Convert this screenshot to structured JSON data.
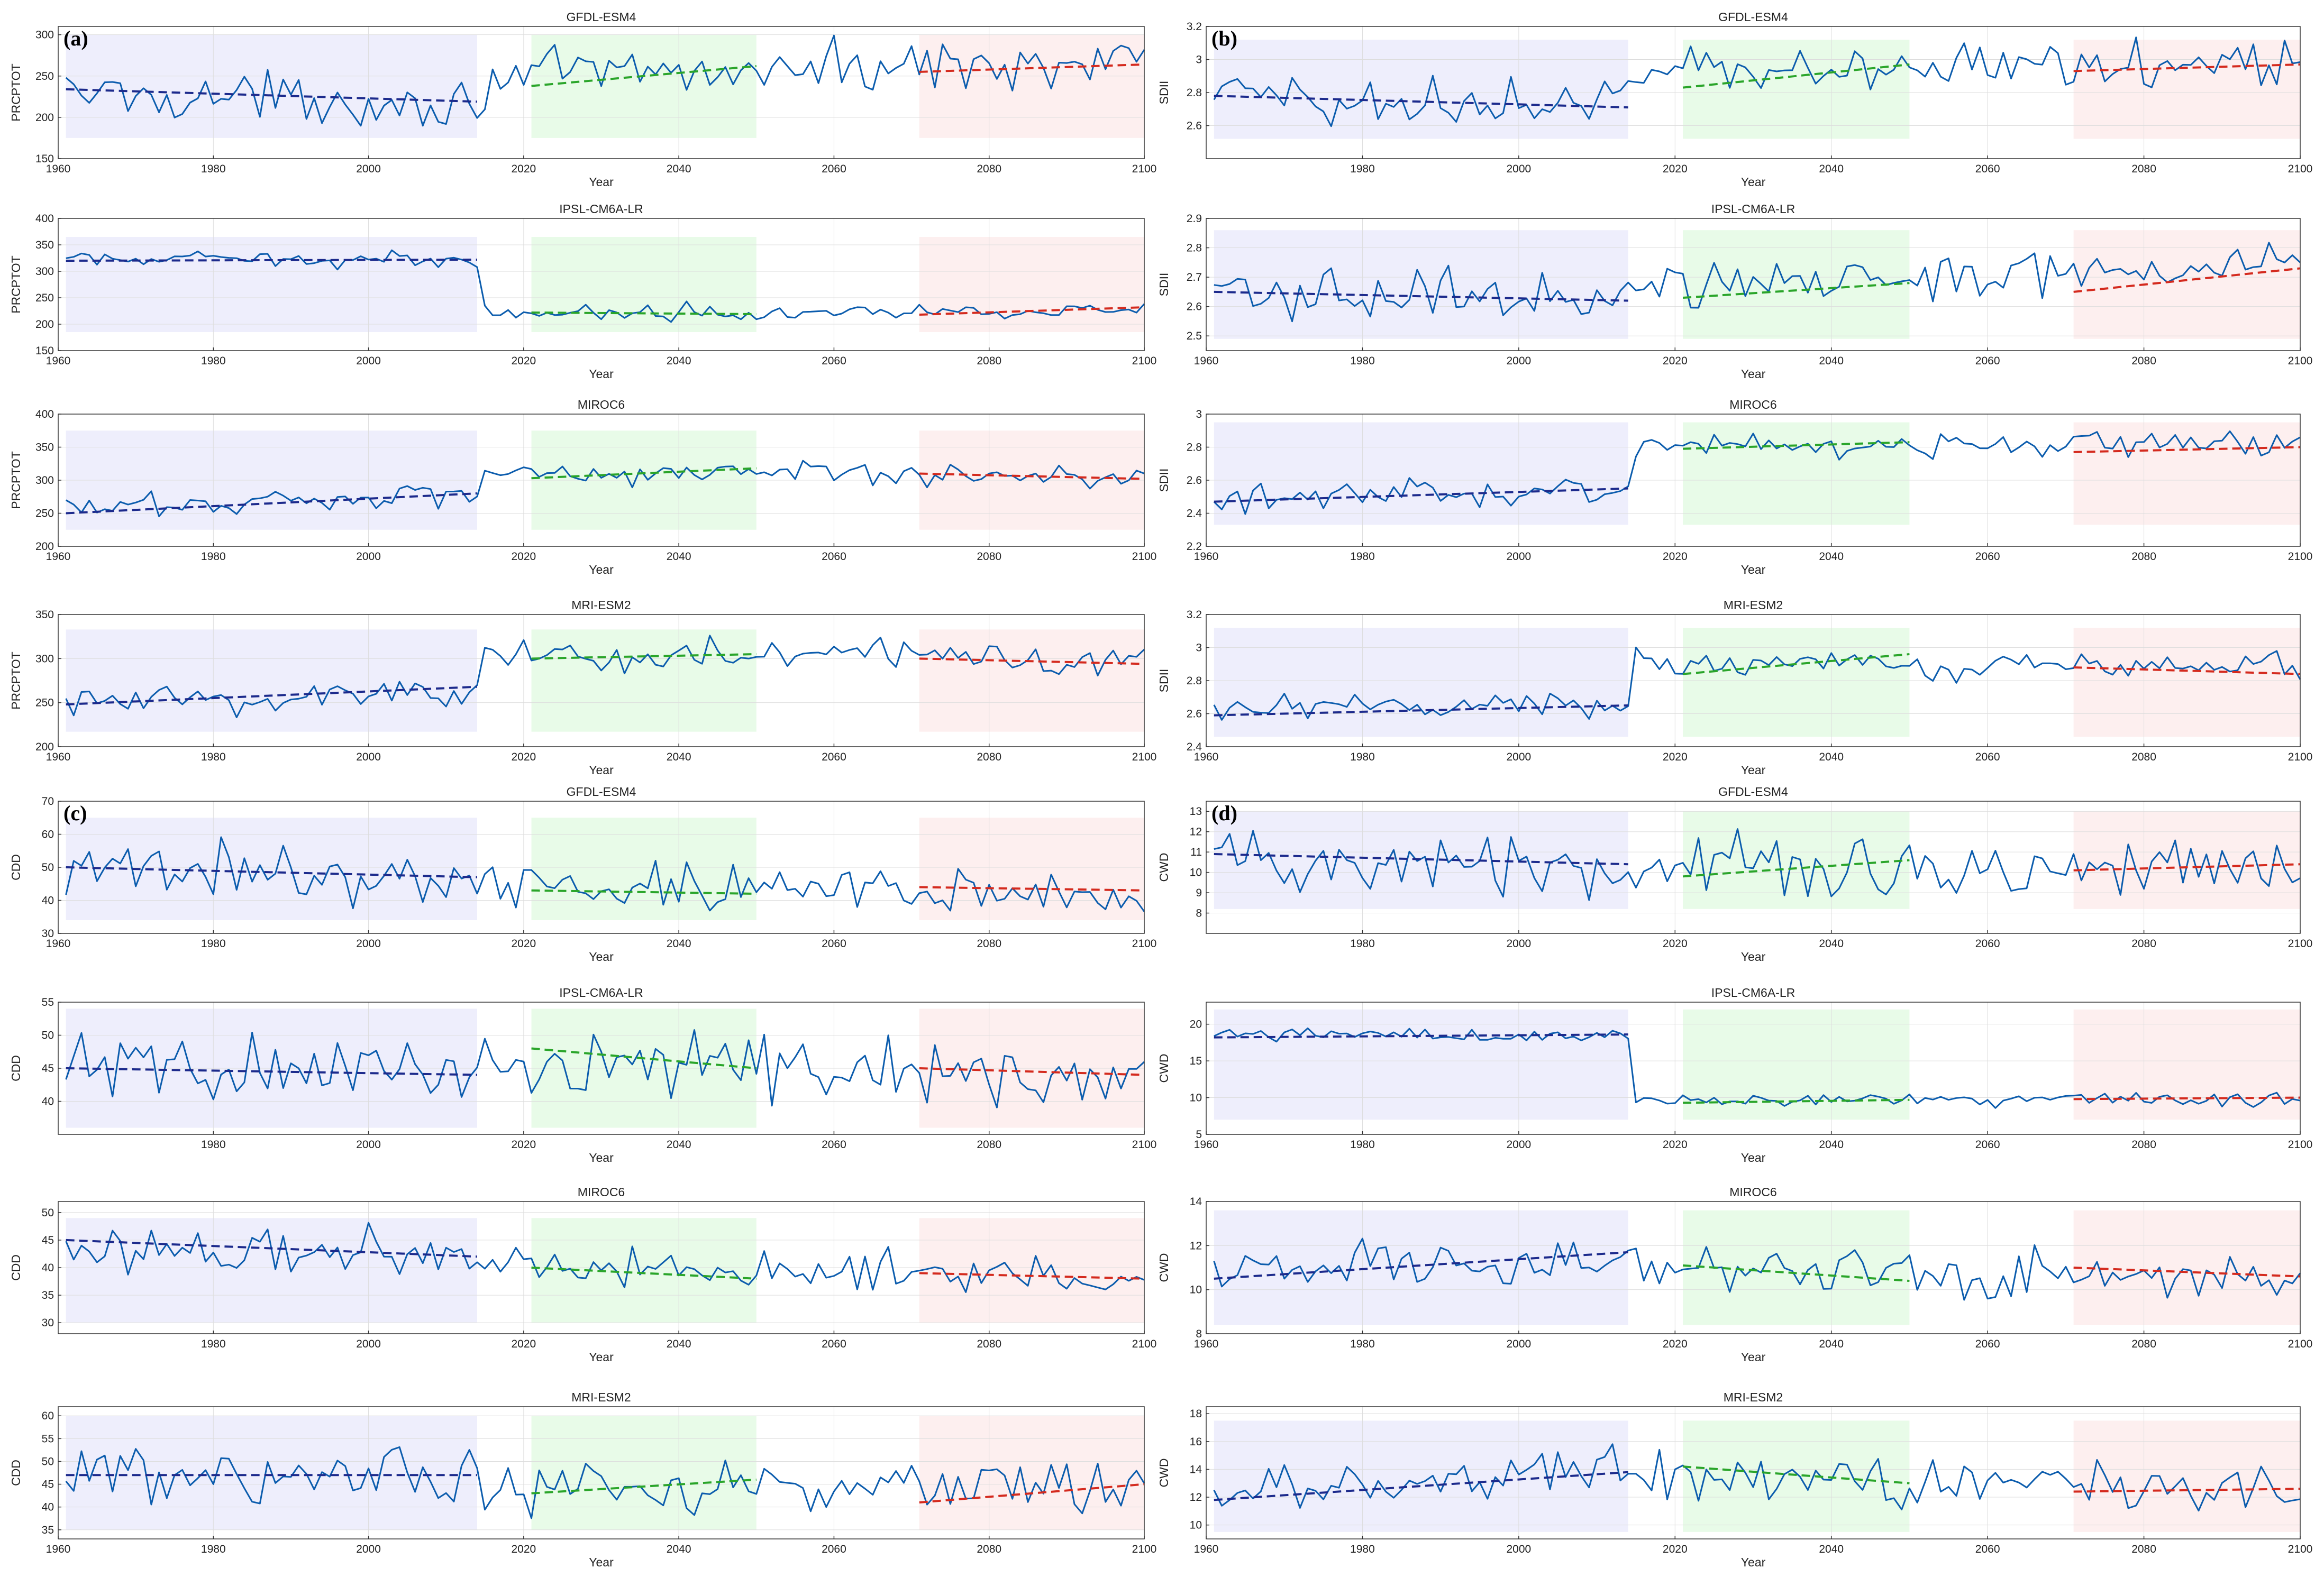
{
  "figure": {
    "panel_labels": [
      "(a)",
      "(b)",
      "(c)",
      "(d)"
    ],
    "colors": {
      "series": "#0b5cad",
      "trend_historical": "#1c2a8c",
      "trend_near": "#2aa52a",
      "trend_far": "#d42a1e",
      "shade_historical": "#eeeefc",
      "shade_near": "#e8fbe8",
      "shade_far": "#fdefef",
      "grid": "#dddddd",
      "axis": "#333333"
    }
  },
  "chart_data": [
    {
      "id": "a1",
      "panel": "(a)",
      "type": "line",
      "title": "GFDL-ESM4",
      "xlabel": "Year",
      "ylabel": "PRCPTOT",
      "xlim": [
        1960,
        2100
      ],
      "ylim": [
        150,
        310
      ],
      "yticks": [
        150,
        200,
        250,
        300
      ],
      "xticks": [
        1960,
        1980,
        2000,
        2020,
        2040,
        2060,
        2080,
        2100
      ],
      "shade_ylim": [
        175,
        300
      ],
      "base": 230,
      "amp": 18,
      "seg": [
        [
          1960,
          2014,
          230,
          -0.25
        ],
        [
          2015,
          2100,
          248,
          0.25
        ]
      ],
      "trends": [
        [
          1961,
          2014,
          234,
          219
        ],
        [
          2021,
          2050,
          238,
          262
        ],
        [
          2071,
          2100,
          255,
          264
        ]
      ]
    },
    {
      "id": "a2",
      "panel": "(a)",
      "type": "line",
      "title": "IPSL-CM6A-LR",
      "xlabel": "Year",
      "ylabel": "PRCPTOT",
      "xlim": [
        1960,
        2100
      ],
      "ylim": [
        150,
        400
      ],
      "yticks": [
        150,
        200,
        250,
        300,
        350,
        400
      ],
      "xticks": [
        1960,
        1980,
        2000,
        2020,
        2040,
        2060,
        2080,
        2100
      ],
      "shade_ylim": [
        185,
        365
      ],
      "base": 322,
      "amp": 9,
      "seg": [
        [
          1960,
          2014,
          322,
          0
        ],
        [
          2015,
          2100,
          222,
          0.06
        ]
      ],
      "trends": [
        [
          1961,
          2014,
          320,
          322
        ],
        [
          2021,
          2050,
          222,
          219
        ],
        [
          2071,
          2100,
          218,
          232
        ]
      ]
    },
    {
      "id": "a3",
      "panel": "(a)",
      "type": "line",
      "title": "MIROC6",
      "xlabel": "Year",
      "ylabel": "PRCPTOT",
      "xlim": [
        1960,
        2100
      ],
      "ylim": [
        200,
        400
      ],
      "yticks": [
        200,
        250,
        300,
        350,
        400
      ],
      "xticks": [
        1960,
        1980,
        2000,
        2020,
        2040,
        2060,
        2080,
        2100
      ],
      "shade_ylim": [
        225,
        375
      ],
      "base": 260,
      "amp": 12,
      "seg": [
        [
          1960,
          2014,
          255,
          0.5
        ],
        [
          2015,
          2100,
          312,
          -0.05
        ]
      ],
      "trends": [
        [
          1961,
          2014,
          250,
          280
        ],
        [
          2021,
          2050,
          303,
          318
        ],
        [
          2071,
          2100,
          310,
          302
        ]
      ]
    },
    {
      "id": "a4",
      "panel": "(a)",
      "type": "line",
      "title": "MRI-ESM2",
      "xlabel": "Year",
      "ylabel": "PRCPTOT",
      "xlim": [
        1960,
        2100
      ],
      "ylim": [
        200,
        350
      ],
      "yticks": [
        200,
        250,
        300,
        350
      ],
      "xticks": [
        1960,
        1980,
        2000,
        2020,
        2040,
        2060,
        2080,
        2100
      ],
      "shade_ylim": [
        217,
        333
      ],
      "base": 252,
      "amp": 13,
      "seg": [
        [
          1960,
          2014,
          248,
          0.3
        ],
        [
          2015,
          2100,
          305,
          -0.05
        ]
      ],
      "trends": [
        [
          1961,
          2014,
          248,
          268
        ],
        [
          2021,
          2050,
          300,
          305
        ],
        [
          2071,
          2100,
          300,
          294
        ]
      ]
    },
    {
      "id": "b1",
      "panel": "(b)",
      "type": "line",
      "title": "GFDL-ESM4",
      "xlabel": "Year",
      "ylabel": "SDII",
      "xlim": [
        1960,
        2100
      ],
      "ylim": [
        2.4,
        3.2
      ],
      "yticks": [
        2.6,
        2.8,
        3.0,
        3.2
      ],
      "xticks": [
        1980,
        2000,
        2020,
        2040,
        2060,
        2080,
        2100
      ],
      "shade_ylim": [
        2.52,
        3.12
      ],
      "base": 2.76,
      "amp": 0.1,
      "seg": [
        [
          1960,
          2014,
          2.78,
          -0.001
        ],
        [
          2015,
          2100,
          2.93,
          0.001
        ]
      ],
      "trends": [
        [
          1961,
          2014,
          2.78,
          2.71
        ],
        [
          2021,
          2050,
          2.83,
          2.97
        ],
        [
          2071,
          2100,
          2.93,
          2.97
        ]
      ]
    },
    {
      "id": "b2",
      "panel": "(b)",
      "type": "line",
      "title": "IPSL-CM6A-LR",
      "xlabel": "Year",
      "ylabel": "SDII",
      "xlim": [
        1960,
        2100
      ],
      "ylim": [
        2.45,
        2.9
      ],
      "yticks": [
        2.5,
        2.6,
        2.7,
        2.8,
        2.9
      ],
      "xticks": [
        1960,
        1980,
        2000,
        2020,
        2040,
        2060,
        2080,
        2100
      ],
      "shade_ylim": [
        2.49,
        2.86
      ],
      "base": 2.64,
      "amp": 0.05,
      "seg": [
        [
          1960,
          2014,
          2.64,
          0
        ],
        [
          2015,
          2100,
          2.67,
          0.0008
        ]
      ],
      "trends": [
        [
          1961,
          2014,
          2.65,
          2.62
        ],
        [
          2021,
          2050,
          2.63,
          2.68
        ],
        [
          2071,
          2100,
          2.65,
          2.73
        ]
      ]
    },
    {
      "id": "b3",
      "panel": "(b)",
      "type": "line",
      "title": "MIROC6",
      "xlabel": "Year",
      "ylabel": "SDII",
      "xlim": [
        1960,
        2100
      ],
      "ylim": [
        2.2,
        3.0
      ],
      "yticks": [
        2.2,
        2.4,
        2.6,
        2.8,
        3.0
      ],
      "xticks": [
        1960,
        1980,
        2000,
        2020,
        2040,
        2060,
        2080,
        2100
      ],
      "shade_ylim": [
        2.33,
        2.95
      ],
      "base": 2.5,
      "amp": 0.05,
      "seg": [
        [
          1960,
          2014,
          2.47,
          0.0015
        ],
        [
          2015,
          2100,
          2.82,
          0
        ]
      ],
      "trends": [
        [
          1961,
          2014,
          2.47,
          2.55
        ],
        [
          2021,
          2050,
          2.79,
          2.83
        ],
        [
          2071,
          2100,
          2.77,
          2.8
        ]
      ]
    },
    {
      "id": "b4",
      "panel": "(b)",
      "type": "line",
      "title": "MRI-ESM2",
      "xlabel": "Year",
      "ylabel": "SDII",
      "xlim": [
        1960,
        2100
      ],
      "ylim": [
        2.4,
        3.2
      ],
      "yticks": [
        2.4,
        2.6,
        2.8,
        3.0,
        3.2
      ],
      "xticks": [
        1960,
        1980,
        2000,
        2020,
        2040,
        2060,
        2080,
        2100
      ],
      "shade_ylim": [
        2.46,
        3.12
      ],
      "base": 2.62,
      "amp": 0.05,
      "seg": [
        [
          1960,
          2014,
          2.61,
          0.001
        ],
        [
          2015,
          2100,
          2.9,
          0
        ]
      ],
      "trends": [
        [
          1961,
          2014,
          2.59,
          2.65
        ],
        [
          2021,
          2050,
          2.84,
          2.96
        ],
        [
          2071,
          2100,
          2.88,
          2.84
        ]
      ]
    },
    {
      "id": "c1",
      "panel": "(c)",
      "type": "line",
      "title": "GFDL-ESM4",
      "xlabel": "Year",
      "ylabel": "CDD",
      "xlim": [
        1960,
        2100
      ],
      "ylim": [
        30,
        70
      ],
      "yticks": [
        30,
        40,
        50,
        60,
        70
      ],
      "xticks": [
        1960,
        1980,
        2000,
        2020,
        2040,
        2060,
        2080,
        2100
      ],
      "shade_ylim": [
        34,
        65
      ],
      "base": 48,
      "amp": 5,
      "seg": [
        [
          1960,
          2014,
          49,
          -0.04
        ],
        [
          2015,
          2100,
          44,
          -0.01
        ]
      ],
      "trends": [
        [
          1961,
          2014,
          50,
          47
        ],
        [
          2021,
          2050,
          43,
          42
        ],
        [
          2071,
          2100,
          44,
          43
        ]
      ]
    },
    {
      "id": "c2",
      "panel": "(c)",
      "type": "line",
      "title": "IPSL-CM6A-LR",
      "xlabel": "Year",
      "ylabel": "CDD",
      "xlim": [
        1960,
        2100
      ],
      "ylim": [
        35,
        55
      ],
      "yticks": [
        40,
        45,
        50,
        55
      ],
      "xticks": [
        1980,
        2000,
        2020,
        2040,
        2060,
        2080,
        2100
      ],
      "shade_ylim": [
        36,
        54
      ],
      "base": 45,
      "amp": 3,
      "seg": [
        [
          1960,
          2014,
          45,
          0
        ],
        [
          2015,
          2100,
          46,
          -0.03
        ]
      ],
      "trends": [
        [
          1961,
          2014,
          45,
          44
        ],
        [
          2021,
          2050,
          48,
          45
        ],
        [
          2071,
          2100,
          45,
          44
        ]
      ]
    },
    {
      "id": "c3",
      "panel": "(c)",
      "type": "line",
      "title": "MIROC6",
      "xlabel": "Year",
      "ylabel": "CDD",
      "xlim": [
        1960,
        2100
      ],
      "ylim": [
        28,
        52
      ],
      "yticks": [
        30,
        35,
        40,
        45,
        50
      ],
      "xticks": [
        1980,
        2000,
        2020,
        2040,
        2060,
        2080,
        2100
      ],
      "shade_ylim": [
        30,
        49
      ],
      "base": 44,
      "amp": 2.5,
      "seg": [
        [
          1960,
          2014,
          44,
          -0.03
        ],
        [
          2015,
          2100,
          40,
          -0.02
        ]
      ],
      "trends": [
        [
          1961,
          2014,
          45,
          42
        ],
        [
          2021,
          2050,
          40,
          38
        ],
        [
          2071,
          2100,
          39,
          38
        ]
      ]
    },
    {
      "id": "c4",
      "panel": "(c)",
      "type": "line",
      "title": "MRI-ESM2",
      "xlabel": "Year",
      "ylabel": "CDD",
      "xlim": [
        1960,
        2100
      ],
      "ylim": [
        33,
        62
      ],
      "yticks": [
        35,
        40,
        45,
        50,
        55,
        60
      ],
      "xticks": [
        1960,
        1980,
        2000,
        2020,
        2040,
        2060,
        2080,
        2100
      ],
      "shade_ylim": [
        35,
        60
      ],
      "base": 47,
      "amp": 3.5,
      "seg": [
        [
          1960,
          2014,
          47,
          0
        ],
        [
          2015,
          2100,
          44,
          0
        ]
      ],
      "trends": [
        [
          1961,
          2014,
          47,
          47
        ],
        [
          2021,
          2050,
          43,
          46
        ],
        [
          2071,
          2100,
          41,
          45
        ]
      ]
    },
    {
      "id": "d1",
      "panel": "(d)",
      "type": "line",
      "title": "GFDL-ESM4",
      "xlabel": "Year",
      "ylabel": "CWD",
      "xlim": [
        1960,
        2100
      ],
      "ylim": [
        7,
        13.5
      ],
      "yticks": [
        8,
        9,
        10,
        11,
        12,
        13
      ],
      "xticks": [
        1980,
        2000,
        2020,
        2040,
        2060,
        2080,
        2100
      ],
      "shade_ylim": [
        8.2,
        13
      ],
      "base": 10.5,
      "amp": 0.9,
      "seg": [
        [
          1960,
          2014,
          10.7,
          -0.01
        ],
        [
          2015,
          2100,
          10.1,
          0.003
        ]
      ],
      "trends": [
        [
          1961,
          2014,
          10.9,
          10.4
        ],
        [
          2021,
          2050,
          9.8,
          10.6
        ],
        [
          2071,
          2100,
          10.1,
          10.4
        ]
      ]
    },
    {
      "id": "d2",
      "panel": "(d)",
      "type": "line",
      "title": "IPSL-CM6A-LR",
      "xlabel": "Year",
      "ylabel": "CWD",
      "xlim": [
        1960,
        2100
      ],
      "ylim": [
        5,
        23
      ],
      "yticks": [
        5,
        10,
        15,
        20
      ],
      "xticks": [
        1960,
        1980,
        2000,
        2020,
        2040,
        2060,
        2080,
        2100
      ],
      "shade_ylim": [
        7,
        22
      ],
      "base": 18.5,
      "amp": 0.6,
      "seg": [
        [
          1960,
          2014,
          18.5,
          0
        ],
        [
          2015,
          2100,
          9.7,
          0
        ]
      ],
      "trends": [
        [
          1961,
          2014,
          18.2,
          18.6
        ],
        [
          2021,
          2050,
          9.3,
          9.7
        ],
        [
          2071,
          2100,
          9.8,
          10.0
        ]
      ]
    },
    {
      "id": "d3",
      "panel": "(d)",
      "type": "line",
      "title": "MIROC6",
      "xlabel": "Year",
      "ylabel": "CWD",
      "xlim": [
        1960,
        2100
      ],
      "ylim": [
        8,
        14
      ],
      "yticks": [
        8,
        10,
        12,
        14
      ],
      "xticks": [
        1960,
        1980,
        2000,
        2020,
        2040,
        2060,
        2080,
        2100
      ],
      "shade_ylim": [
        8.4,
        13.6
      ],
      "base": 11,
      "amp": 0.7,
      "seg": [
        [
          1960,
          2014,
          10.8,
          0.015
        ],
        [
          2015,
          2100,
          10.9,
          -0.005
        ]
      ],
      "trends": [
        [
          1961,
          2014,
          10.5,
          11.7
        ],
        [
          2021,
          2050,
          11.1,
          10.4
        ],
        [
          2071,
          2100,
          11.0,
          10.6
        ]
      ]
    },
    {
      "id": "d4",
      "panel": "(d)",
      "type": "line",
      "title": "MRI-ESM2",
      "xlabel": "Year",
      "ylabel": "CWD",
      "xlim": [
        1960,
        2100
      ],
      "ylim": [
        9,
        18.5
      ],
      "yticks": [
        10,
        12,
        14,
        16,
        18
      ],
      "xticks": [
        1960,
        1980,
        2000,
        2020,
        2040,
        2060,
        2080,
        2100
      ],
      "shade_ylim": [
        9.5,
        17.5
      ],
      "base": 13,
      "amp": 1.2,
      "seg": [
        [
          1960,
          2014,
          12.5,
          0.03
        ],
        [
          2015,
          2100,
          13.5,
          -0.01
        ]
      ],
      "trends": [
        [
          1961,
          2014,
          11.8,
          13.8
        ],
        [
          2021,
          2050,
          14.2,
          13.0
        ],
        [
          2071,
          2100,
          12.4,
          12.6
        ]
      ]
    }
  ]
}
